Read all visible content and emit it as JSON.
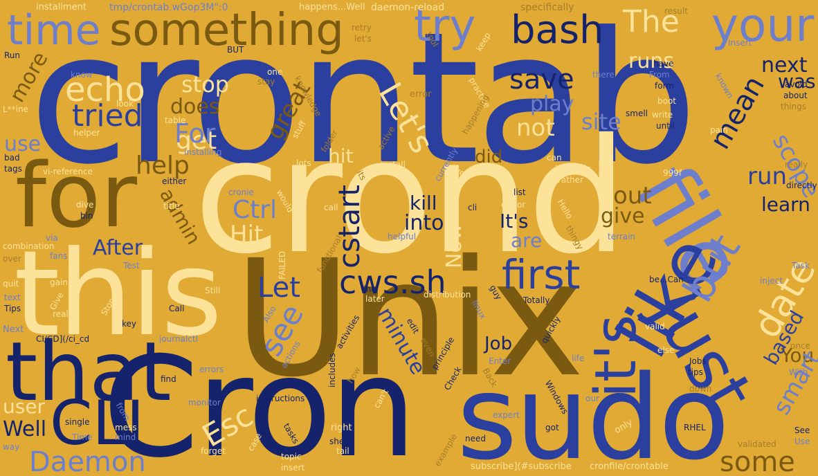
{
  "palette": {
    "background": "#e0aa35",
    "royal_blue": "#2b3f9e",
    "navy": "#14236b",
    "light_blue": "#6d7fcc",
    "cream": "#fde39a",
    "brown": "#7a5a10",
    "tan": "#a57c28"
  },
  "words": {
    "crontab": "crontab",
    "crond": "crond",
    "unix": "Unix",
    "cron": "Cron",
    "sudo": "sudo",
    "this": "this",
    "that": "that",
    "for": "for",
    "file": "file",
    "like": "like",
    "just": "just",
    "its": "it's",
    "something": "something",
    "time": "time",
    "try": "try",
    "your": "your",
    "bash": "bash",
    "the": "The",
    "echo": "echo",
    "tried": "tried",
    "cli": "CLI",
    "daemon": "Daemon",
    "cws": "cws.sh",
    "first": "first",
    "but": "but",
    "date": "date",
    "lets": "Let's",
    "save": "save",
    "play": "play",
    "not": "not",
    "site": "site",
    "mean": "mean",
    "next": "next",
    "was": "was",
    "scope": "scope",
    "run": "run",
    "learn": "learn",
    "get": "get",
    "help": "help",
    "for2": "For",
    "does": "does",
    "stop": "stop",
    "more": "more",
    "use": "use",
    "esc": "Esc",
    "well": "Well",
    "user": "user",
    "ctrl": "Ctrl",
    "hit": "Hit",
    "after": "After",
    "let": "Let",
    "see": "see",
    "minute": "minute",
    "cstart": "cstart",
    "kill": "kill",
    "into": "into",
    "its2": "It's",
    "are": "are",
    "out": "out",
    "give": "give",
    "job": "Job",
    "you": "You",
    "smart": "smart",
    "based": "based",
    "some": "some",
    "great": "great",
    "runs": "runs",
    "admin": "admin",
    "hit2": "hit",
    "did": "did",
    "now": "Now",
    "installment": "installment",
    "tmp_crontab": "tmp/crontab.wGop3M\":0",
    "happens_well": "happens...Well",
    "daemon_reload": "daemon-reload",
    "specifically": "specifically",
    "result": "result",
    "retry": "retry",
    "lets2": "let's",
    "tool": "tool",
    "keep": "keep",
    "insert_cap": "Insert",
    "run_cap": "Run",
    "but_caps": "BUT",
    "know": "know",
    "one": "one",
    "stay": "stay",
    "knowledge": "knowledge",
    "error": "error",
    "practice": "practice",
    "happening": "happening",
    "there": "there",
    "have": "have",
    "from_cap": "From",
    "form": "form",
    "boot": "boot",
    "known": "known",
    "avoid": "avoid",
    "about": "about",
    "things": "things",
    "look": "look",
    "lxxine": "L**ine",
    "table": "table",
    "stuff": "stuff",
    "smell": "smell",
    "write": "write",
    "until": "until",
    "pain": "pain",
    "helper": "helper",
    "folder": "folder",
    "active": "active",
    "installing": "installing",
    "bad": "bad",
    "tags": "tags",
    "vi_reference": "vi-reference",
    "lots": "lots",
    "install": "install",
    "its_small": "its",
    "currently": "currently",
    "yes": "Yes",
    "can": "can",
    "intervals": "intervals",
    "rather": "rather",
    "really": "really",
    "999f": "999f",
    "either": "either",
    "title": "title",
    "cronie": "cronie",
    "would": "would",
    "dive": "dive",
    "bin": "bin",
    "call": "call",
    "cli_small": "cli",
    "editor": "editor",
    "list": "list",
    "hello": "Hello",
    "thingy": "thingy",
    "directly": "directly",
    "via": "via",
    "combination": "combination",
    "fans": "fans",
    "over": "over",
    "test": "Test",
    "failed": "FAILED",
    "functional": "functional",
    "helpful": "helpful",
    "terrain": "terrain",
    "task": "Task",
    "quit": "quit",
    "gain": "gain",
    "text": "text",
    "give_cap": "Give",
    "tips_cap": "Tips",
    "real": "real",
    "stop_cap": "Stop",
    "still": "Still",
    "call_cap": "Call",
    "key": "key",
    "also": "Also",
    "line": "line",
    "later": "later",
    "distribution": "distribution",
    "totally": "Totally",
    "linux": "linux",
    "guy": "guy",
    "be_can": "be...Can",
    "inject": "inject",
    "next_cap": "Next",
    "cicd": "CI/CD](/ci_cd",
    "journalctl": "journalctl",
    "activities": "activities",
    "edit": "edit",
    "principle": "principle",
    "check": "Check",
    "even": "even",
    "quickly": "quickly",
    "valid": "valid",
    "life": "life",
    "else": "else",
    "once": "once",
    "with_cap": "With",
    "includes": "includes",
    "how": "how",
    "actions": "actions",
    "enter": "Enter",
    "back": "Back",
    "windows": "Windows",
    "jobs": "Jobs",
    "tips": "tips",
    "errors": "errors",
    "find": "find",
    "cant": "can't",
    "down": "down",
    "monitor": "monitor",
    "instructions": "instructions",
    "from": "from",
    "our": "our",
    "expert": "expert",
    "single": "single",
    "mess": "mess",
    "time_cap": "Time",
    "mind": "mind",
    "got": "got",
    "only": "only",
    "rhel": "RHEL",
    "see_cap": "See",
    "use_cap": "Use",
    "way": "way",
    "right": "right",
    "shell": "shell",
    "tasks": "tasks",
    "case": "case",
    "example": "example",
    "need": "need",
    "validated": "validated",
    "forget": "forget",
    "tail": "tail",
    "topic": "topic",
    "insert": "insert",
    "subscribe": "subscribe](#subscribe",
    "cronfile": "cronfile/crontable"
  }
}
